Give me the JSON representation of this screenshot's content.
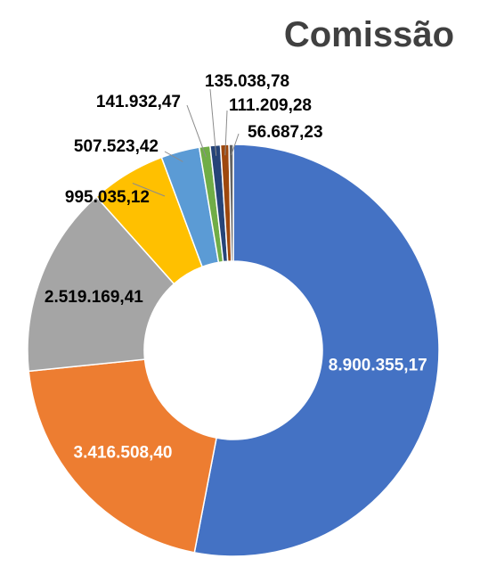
{
  "chart_data": {
    "type": "pie",
    "style": "doughnut",
    "title": "Comissão",
    "legend": "none",
    "slices": [
      {
        "value": 8900355.17,
        "label": "8.900.355,17",
        "color": "#4472C4",
        "label_color": "#ffffff"
      },
      {
        "value": 3416508.4,
        "label": "3.416.508,40",
        "color": "#ED7D31",
        "label_color": "#ffffff"
      },
      {
        "value": 2519169.41,
        "label": "2.519.169,41",
        "color": "#A5A5A5",
        "label_color": "#000000"
      },
      {
        "value": 995035.12,
        "label": "995.035,12",
        "color": "#FFC000",
        "label_color": "#000000"
      },
      {
        "value": 507523.42,
        "label": "507.523,42",
        "color": "#5B9BD5",
        "label_color": "#000000"
      },
      {
        "value": 141932.47,
        "label": "141.932,47",
        "color": "#70AD47",
        "label_color": "#000000"
      },
      {
        "value": 135038.78,
        "label": "135.038,78",
        "color": "#264478",
        "label_color": "#000000"
      },
      {
        "value": 111209.28,
        "label": "111.209,28",
        "color": "#9E480E",
        "label_color": "#000000"
      },
      {
        "value": 56687.23,
        "label": "56.687,23",
        "color": "#636363",
        "label_color": "#000000"
      }
    ]
  }
}
